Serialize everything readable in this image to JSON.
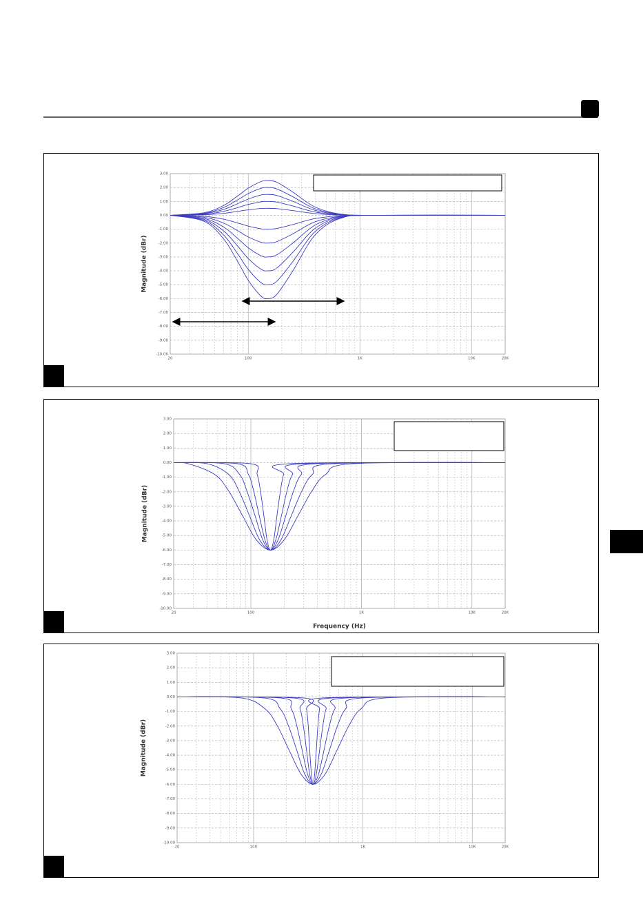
{
  "chart_data": [
    {
      "type": "line",
      "ylabel": "Magnitude (dBr)",
      "color": "#3b3bc4",
      "xscale": "log",
      "xlim": [
        20,
        20000
      ],
      "ylim": [
        -10,
        3
      ],
      "xticks": [
        20,
        100,
        {
          "value": 1000,
          "label": "1K"
        },
        {
          "value": 10000,
          "label": "10K"
        },
        {
          "value": 20000,
          "label": "20K"
        }
      ],
      "xminorticks": [
        30,
        40,
        50,
        60,
        70,
        80,
        90,
        200,
        300,
        400,
        500,
        600,
        700,
        800,
        900,
        2000,
        3000,
        4000,
        5000,
        6000,
        7000,
        8000,
        9000
      ],
      "yticks": [
        {
          "value": 3,
          "label": "3.00"
        },
        {
          "value": 2,
          "label": "2.00"
        },
        {
          "value": 1,
          "label": "1.00"
        },
        {
          "value": 0,
          "label": "0.00"
        },
        {
          "value": -1,
          "label": "-1.00"
        },
        {
          "value": -2,
          "label": "-2.00"
        },
        {
          "value": -3,
          "label": "-3.00"
        },
        {
          "value": -4,
          "label": "-4.00"
        },
        {
          "value": -5,
          "label": "-5.00"
        },
        {
          "value": -6,
          "label": "-6.00"
        },
        {
          "value": -7,
          "label": "-7.00"
        },
        {
          "value": -8,
          "label": "-8.00"
        },
        {
          "value": -9,
          "label": "-9.00"
        },
        {
          "value": -10,
          "label": "-10.00"
        }
      ],
      "grid": true,
      "x": [
        20,
        40,
        60,
        80,
        100,
        130,
        150,
        180,
        250,
        400,
        700,
        1500,
        20000
      ],
      "series": [
        {
          "values": [
            0,
            0.18,
            0.7,
            1.38,
            1.95,
            2.43,
            2.5,
            2.38,
            1.68,
            0.58,
            0.07,
            0,
            0
          ]
        },
        {
          "values": [
            0,
            0.14,
            0.56,
            1.1,
            1.56,
            1.94,
            2,
            1.9,
            1.34,
            0.46,
            0.06,
            0,
            0
          ]
        },
        {
          "values": [
            0,
            0.11,
            0.42,
            0.83,
            1.17,
            1.46,
            1.5,
            1.43,
            1.01,
            0.35,
            0.04,
            0,
            0
          ]
        },
        {
          "values": [
            0,
            0.07,
            0.28,
            0.55,
            0.78,
            0.97,
            1,
            0.95,
            0.67,
            0.23,
            0.03,
            0,
            0
          ]
        },
        {
          "values": [
            0,
            0.04,
            0.14,
            0.28,
            0.39,
            0.49,
            0.5,
            0.48,
            0.34,
            0.12,
            0.01,
            0,
            0
          ]
        },
        {
          "values": [
            0,
            -0.07,
            -0.28,
            -0.55,
            -0.78,
            -0.97,
            -1,
            -0.95,
            -0.67,
            -0.23,
            -0.03,
            0,
            0
          ]
        },
        {
          "values": [
            0,
            -0.14,
            -0.56,
            -1.1,
            -1.56,
            -1.94,
            -2,
            -1.9,
            -1.34,
            -0.46,
            -0.06,
            0,
            0
          ]
        },
        {
          "values": [
            0,
            -0.22,
            -0.84,
            -1.65,
            -2.34,
            -2.91,
            -3,
            -2.85,
            -2.01,
            -0.69,
            -0.08,
            0,
            0
          ]
        },
        {
          "values": [
            0,
            -0.29,
            -1.12,
            -2.2,
            -3.12,
            -3.88,
            -4,
            -3.8,
            -2.68,
            -0.92,
            -0.11,
            0,
            0
          ]
        },
        {
          "values": [
            0,
            -0.36,
            -1.41,
            -2.75,
            -3.9,
            -4.85,
            -5,
            -4.75,
            -3.35,
            -1.15,
            -0.14,
            0,
            0
          ]
        },
        {
          "values": [
            0,
            -0.43,
            -1.69,
            -3.3,
            -4.68,
            -5.82,
            -6,
            -5.7,
            -4.02,
            -1.38,
            -0.17,
            0,
            0
          ]
        }
      ]
    },
    {
      "type": "line",
      "ylabel": "Magnitude (dBr)",
      "xlabel": "Frequency (Hz)",
      "color": "#3b3bc4",
      "xscale": "log",
      "xlim": [
        20,
        20000
      ],
      "ylim": [
        -10,
        3
      ],
      "xticks": [
        20,
        100,
        {
          "value": 1000,
          "label": "1K"
        },
        {
          "value": 10000,
          "label": "10K"
        },
        {
          "value": 20000,
          "label": "20K"
        }
      ],
      "xminorticks": [
        30,
        40,
        50,
        60,
        70,
        80,
        90,
        200,
        300,
        400,
        500,
        600,
        700,
        800,
        900,
        2000,
        3000,
        4000,
        5000,
        6000,
        7000,
        8000,
        9000
      ],
      "yticks": [
        {
          "value": 3,
          "label": "3.00"
        },
        {
          "value": 2,
          "label": "2.00"
        },
        {
          "value": 1,
          "label": "1.00"
        },
        {
          "value": 0,
          "label": "0.00"
        },
        {
          "value": -1,
          "label": "-1.00"
        },
        {
          "value": -2,
          "label": "-2.00"
        },
        {
          "value": -3,
          "label": "-3.00"
        },
        {
          "value": -4,
          "label": "-4.00"
        },
        {
          "value": -5,
          "label": "-5.00"
        },
        {
          "value": -6,
          "label": "-6.00"
        },
        {
          "value": -7,
          "label": "-7.00"
        },
        {
          "value": -8,
          "label": "-8.00"
        },
        {
          "value": -9,
          "label": "-9.00"
        },
        {
          "value": -10,
          "label": "-10.00"
        }
      ],
      "grid": true,
      "series": [
        {
          "x": [
            20,
            99,
            114,
            122,
            131,
            140,
            150,
            161,
            172,
            185,
            198,
            227,
            20000
          ],
          "values": [
            0,
            -0.07,
            -0.81,
            -1.95,
            -3.64,
            -5.3,
            -6,
            -5.3,
            -3.64,
            -1.95,
            -0.81,
            -0.07,
            0
          ]
        },
        {
          "x": [
            20,
            75,
            95,
            106,
            119,
            134,
            150,
            168,
            189,
            212,
            238,
            299,
            20000
          ],
          "values": [
            0,
            -0.07,
            -0.81,
            -1.95,
            -3.64,
            -5.3,
            -6,
            -5.3,
            -3.64,
            -1.95,
            -0.81,
            -0.07,
            0
          ]
        },
        {
          "x": [
            20,
            57,
            79,
            92,
            109,
            128,
            150,
            176,
            207,
            243,
            286,
            395,
            20000
          ],
          "values": [
            0,
            -0.07,
            -0.81,
            -1.95,
            -3.64,
            -5.3,
            -6,
            -5.3,
            -3.64,
            -1.95,
            -0.81,
            -0.07,
            0
          ]
        },
        {
          "x": [
            20,
            40,
            63,
            78,
            97,
            120,
            150,
            187,
            232,
            289,
            360,
            557,
            20000
          ],
          "values": [
            0,
            -0.07,
            -0.81,
            -1.95,
            -3.64,
            -5.3,
            -6,
            -5.3,
            -3.64,
            -1.95,
            -0.81,
            -0.07,
            0
          ]
        },
        {
          "x": [
            20,
            27,
            47,
            63,
            84,
            112,
            150,
            200,
            267,
            356,
            474,
            843,
            20000
          ],
          "values": [
            0,
            -0.07,
            -0.81,
            -1.95,
            -3.64,
            -5.3,
            -6,
            -5.3,
            -3.64,
            -1.95,
            -0.81,
            -0.07,
            0
          ]
        }
      ]
    },
    {
      "type": "line",
      "ylabel": "Magnitude (dBr)",
      "color": "#3b3bc4",
      "xscale": "log",
      "xlim": [
        20,
        20000
      ],
      "ylim": [
        -10,
        3
      ],
      "xticks": [
        20,
        100,
        {
          "value": 1000,
          "label": "1K"
        },
        {
          "value": 10000,
          "label": "10K"
        },
        {
          "value": 20000,
          "label": "20K"
        }
      ],
      "xminorticks": [
        30,
        40,
        50,
        60,
        70,
        80,
        90,
        200,
        300,
        400,
        500,
        600,
        700,
        800,
        900,
        2000,
        3000,
        4000,
        5000,
        6000,
        7000,
        8000,
        9000
      ],
      "yticks": [
        {
          "value": 3,
          "label": "3.00"
        },
        {
          "value": 2,
          "label": "2.00"
        },
        {
          "value": 1,
          "label": "1.00"
        },
        {
          "value": 0,
          "label": "0.00"
        },
        {
          "value": -1,
          "label": "-1.00"
        },
        {
          "value": -2,
          "label": "-2.00"
        },
        {
          "value": -3,
          "label": "-3.00"
        },
        {
          "value": -4,
          "label": "-4.00"
        },
        {
          "value": -5,
          "label": "-5.00"
        },
        {
          "value": -6,
          "label": "-6.00"
        },
        {
          "value": -7,
          "label": "-7.00"
        },
        {
          "value": -8,
          "label": "-8.00"
        },
        {
          "value": -9,
          "label": "-9.00"
        },
        {
          "value": -10,
          "label": "-10.00"
        }
      ],
      "grid": true,
      "series": [
        {
          "x": [
            20,
            285,
            305,
            316,
            326,
            338,
            350,
            362,
            375,
            388,
            402,
            431,
            20000
          ],
          "values": [
            0,
            -0.07,
            -0.81,
            -1.95,
            -3.64,
            -5.3,
            -6,
            -5.3,
            -3.64,
            -1.95,
            -0.81,
            -0.07,
            0
          ]
        },
        {
          "x": [
            20,
            231,
            266,
            285,
            305,
            326,
            350,
            375,
            402,
            431,
            461,
            530,
            20000
          ],
          "values": [
            0,
            -0.07,
            -0.81,
            -1.95,
            -3.64,
            -5.3,
            -6,
            -5.3,
            -3.64,
            -1.95,
            -0.81,
            -0.07,
            0
          ]
        },
        {
          "x": [
            20,
            175,
            221,
            248,
            278,
            312,
            350,
            393,
            441,
            495,
            555,
            698,
            20000
          ],
          "values": [
            0,
            -0.07,
            -0.81,
            -1.95,
            -3.64,
            -5.3,
            -6,
            -5.3,
            -3.64,
            -1.95,
            -0.81,
            -0.07,
            0
          ]
        },
        {
          "x": [
            20,
            124,
            175,
            208,
            248,
            294,
            350,
            416,
            495,
            588,
            698,
            986,
            20000
          ],
          "values": [
            0,
            -0.07,
            -0.81,
            -1.95,
            -3.64,
            -5.3,
            -6,
            -5.3,
            -3.64,
            -1.95,
            -0.81,
            -0.07,
            0
          ]
        },
        {
          "x": [
            20,
            77,
            127,
            164,
            211,
            272,
            350,
            451,
            581,
            748,
            964,
            1600,
            20000
          ],
          "values": [
            0,
            -0.07,
            -0.81,
            -1.95,
            -3.64,
            -5.3,
            -6,
            -5.3,
            -3.64,
            -1.95,
            -0.81,
            -0.07,
            0
          ]
        }
      ]
    }
  ]
}
